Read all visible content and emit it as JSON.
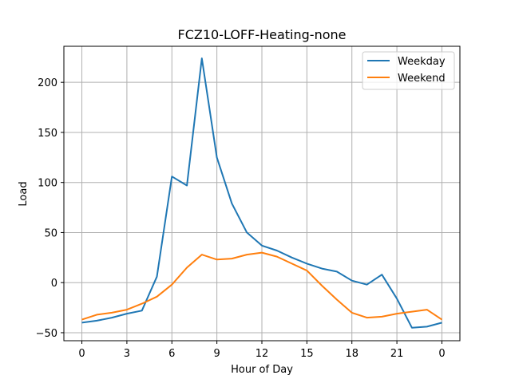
{
  "chart_data": {
    "type": "line",
    "title": "FCZ10-LOFF-Heating-none",
    "xlabel": "Hour of Day",
    "ylabel": "Load",
    "x_tick_labels": [
      "0",
      "3",
      "6",
      "9",
      "12",
      "15",
      "18",
      "21",
      "0"
    ],
    "y_ticks": [
      -50,
      0,
      50,
      100,
      150,
      200
    ],
    "xlim": [
      -1.2,
      25.2
    ],
    "ylim": [
      -58,
      236
    ],
    "grid": true,
    "legend_position": "top-right",
    "x": [
      0,
      1,
      2,
      3,
      4,
      5,
      6,
      7,
      8,
      9,
      10,
      11,
      12,
      13,
      14,
      15,
      16,
      17,
      18,
      19,
      20,
      21,
      22,
      23,
      24
    ],
    "series": [
      {
        "name": "Weekday",
        "color": "#1f77b4",
        "values": [
          -40,
          -38,
          -35,
          -31,
          -28,
          6,
          106,
          97,
          224,
          125,
          79,
          50,
          37,
          32,
          25,
          19,
          14,
          11,
          2,
          -2,
          8,
          -16,
          -45,
          -44,
          -40
        ]
      },
      {
        "name": "Weekend",
        "color": "#ff7f0e",
        "values": [
          -37,
          -32,
          -30,
          -27,
          -21,
          -14,
          -2,
          15,
          28,
          23,
          24,
          28,
          30,
          26,
          19,
          12,
          -3,
          -17,
          -30,
          -35,
          -34,
          -31,
          -29,
          -27,
          -37
        ]
      }
    ]
  }
}
